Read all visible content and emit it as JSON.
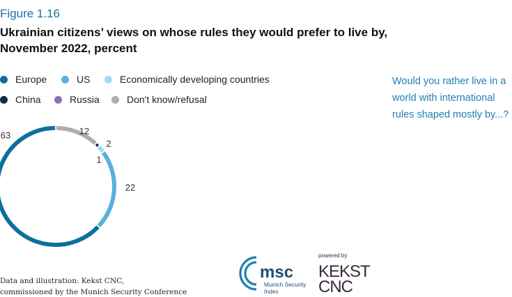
{
  "figure_label": "Figure 1.16",
  "title_line1": "Ukrainian citizens’ views on whose rules they would prefer to live by,",
  "title_line2": "November 2022, percent",
  "question": "Would you rather live in a world with international rules shaped mostly by...?",
  "source_line1": "Data and illustration: Kekst CNC,",
  "source_line2": "commissioned by the Munich Security Conference",
  "logos": {
    "msc_text": "msc",
    "msc_sub1": "Munich Security",
    "msc_sub2": "Index",
    "powered_by": "powered by",
    "kekst_line1": "KEKST",
    "kekst_line2": "CNC"
  },
  "colors": {
    "europe": "#0e6f9e",
    "us": "#5ab0de",
    "developing": "#a9d8f0",
    "china": "#0c2d48",
    "russia": "#8a6fb0",
    "dontknow": "#b3aca6"
  },
  "chart_data": {
    "type": "pie",
    "variant": "thin ring",
    "title": "Ukrainian citizens’ views on whose rules they would prefer to live by, November 2022, percent",
    "legend_position": "top-left",
    "series": [
      {
        "name": "Europe",
        "value": 63,
        "color": "#0e6f9e"
      },
      {
        "name": "US",
        "value": 22,
        "color": "#5ab0de"
      },
      {
        "name": "Economically developing countries",
        "value": 2,
        "color": "#a9d8f0"
      },
      {
        "name": "China",
        "value": 1,
        "color": "#0c2d48"
      },
      {
        "name": "Russia",
        "value": 0,
        "color": "#8a6fb0"
      },
      {
        "name": "Don't know/refusal",
        "value": 12,
        "color": "#b3aca6"
      }
    ],
    "data_labels": [
      "63",
      "22",
      "2",
      "1",
      "12"
    ]
  }
}
